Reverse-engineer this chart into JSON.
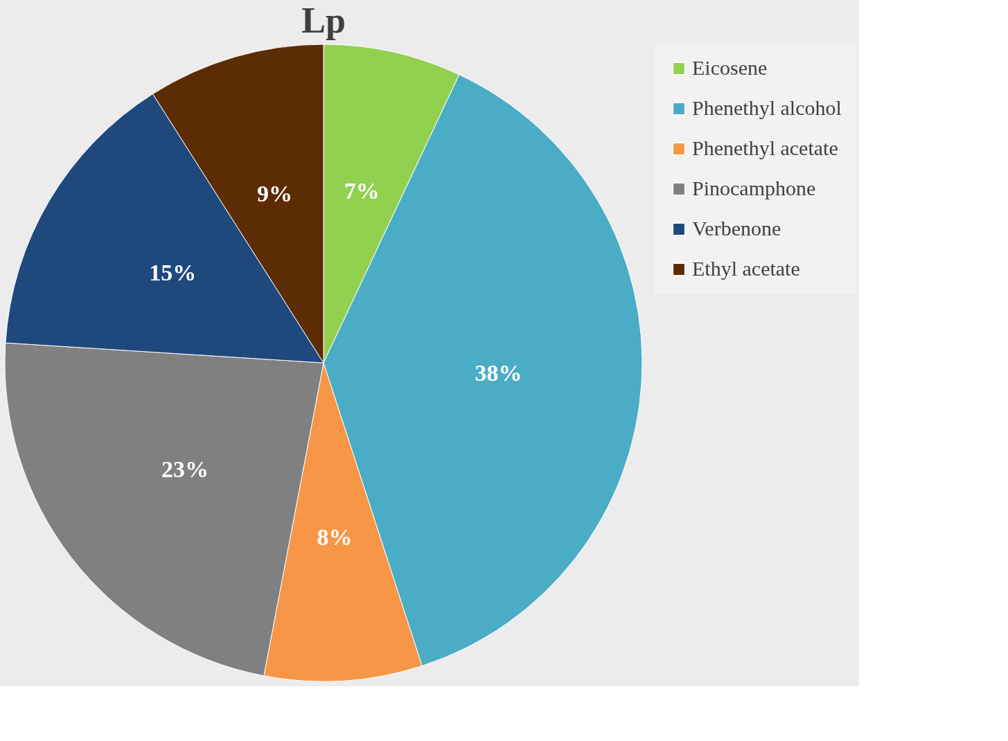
{
  "chart_data": {
    "type": "pie",
    "title": "Lp",
    "categories": [
      "Eicosene",
      "Phenethyl alcohol",
      "Phenethyl acetate",
      "Pinocamphone",
      "Verbenone",
      "Ethyl acetate"
    ],
    "values": [
      7,
      38,
      8,
      23,
      15,
      9
    ],
    "colors": [
      "#92d050",
      "#4bacc6",
      "#f79646",
      "#808080",
      "#1f497d",
      "#5c2c04"
    ],
    "value_labels": [
      "7%",
      "38%",
      "8%",
      "23%",
      "15%",
      "9%"
    ],
    "legend": "right"
  }
}
